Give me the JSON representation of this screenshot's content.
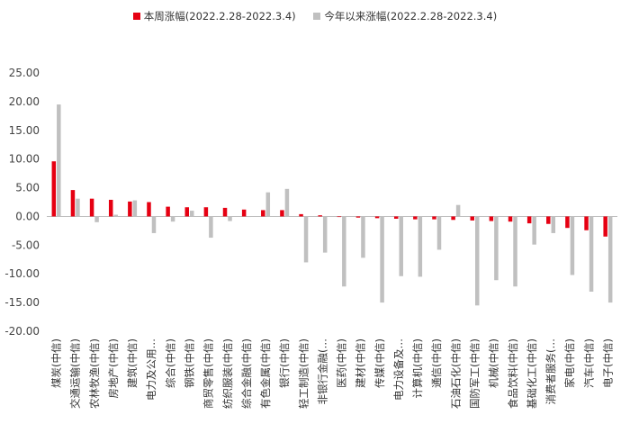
{
  "chart_data": {
    "type": "bar",
    "title": "",
    "xlabel": "",
    "ylabel": "",
    "ylim": [
      -20,
      25
    ],
    "yticks": [
      "25.00",
      "20.00",
      "15.00",
      "10.00",
      "5.00",
      "0.00",
      "-5.00",
      "-10.00",
      "-15.00",
      "-20.00"
    ],
    "categories": [
      "煤炭(中信)",
      "交通运输(中信)",
      "农林牧渔(中信)",
      "房地产(中信)",
      "建筑(中信)",
      "电力及公用…",
      "综合(中信)",
      "钢铁(中信)",
      "商贸零售(中信)",
      "纺织服装(中信)",
      "综合金融(中信)",
      "有色金属(中信)",
      "银行(中信)",
      "轻工制造(中信)",
      "非银行金融(…",
      "医药(中信)",
      "建材(中信)",
      "传媒(中信)",
      "电力设备及…",
      "计算机(中信)",
      "通信(中信)",
      "石油石化(中信)",
      "国防军工(中信)",
      "机械(中信)",
      "食品饮料(中信)",
      "基础化工(中信)",
      "消费者服务(…",
      "家电(中信)",
      "汽车(中信)",
      "电子(中信)"
    ],
    "series": [
      {
        "name": "本周涨幅(2022.2.28-2022.3.4)",
        "color": "#e60012",
        "values": [
          9.6,
          4.6,
          3.1,
          2.9,
          2.6,
          2.5,
          1.7,
          1.6,
          1.6,
          1.5,
          1.2,
          1.1,
          1.1,
          0.4,
          0.2,
          -0.1,
          -0.2,
          -0.3,
          -0.4,
          -0.5,
          -0.5,
          -0.6,
          -0.7,
          -0.8,
          -0.9,
          -1.2,
          -1.3,
          -2.0,
          -2.4,
          -3.5
        ]
      },
      {
        "name": "今年以来涨幅(2022.2.28-2022.3.4)",
        "color": "#c0c0c0",
        "values": [
          19.5,
          3.1,
          -1.0,
          0.3,
          2.8,
          -2.9,
          -0.9,
          1.0,
          -3.7,
          -0.8,
          0.0,
          4.2,
          4.8,
          -8.0,
          -6.3,
          -12.2,
          -7.2,
          -15.0,
          -10.4,
          -10.5,
          -5.8,
          2.0,
          -15.5,
          -11.1,
          -12.2,
          -4.9,
          -2.9,
          -10.2,
          -13.1,
          -15.0
        ]
      }
    ]
  }
}
